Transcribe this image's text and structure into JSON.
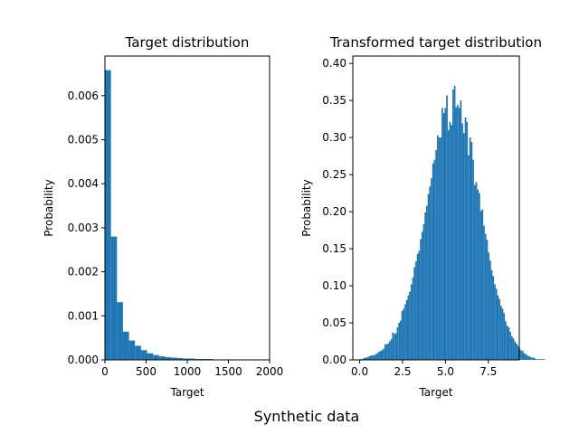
{
  "figure": {
    "suptitle": "Synthetic data"
  },
  "chart_data": [
    {
      "type": "bar",
      "title": "Target distribution",
      "xlabel": "Target",
      "ylabel": "Probability",
      "xlim": [
        0,
        2000
      ],
      "ylim": [
        0,
        0.0069
      ],
      "xticks": [
        "0",
        "500",
        "1000",
        "1500",
        "2000"
      ],
      "yticks": [
        "0.000",
        "0.001",
        "0.002",
        "0.003",
        "0.004",
        "0.005",
        "0.006"
      ],
      "bin_start": 0,
      "bin_width": 73,
      "values": [
        0.00658,
        0.0028,
        0.00131,
        0.00064,
        0.00044,
        0.00032,
        0.00022,
        0.00015,
        0.00011,
        8e-05,
        6e-05,
        5e-05,
        4e-05,
        3e-05,
        3e-05,
        2e-05,
        2e-05,
        2e-05,
        1e-05,
        1e-05,
        1e-05,
        1e-05,
        1e-05,
        8e-06,
        5e-06
      ],
      "bar_color": "#1f77b4",
      "grid": false
    },
    {
      "type": "bar",
      "title": "Transformed target distribution",
      "xlabel": "Target",
      "ylabel": "Probability",
      "xlim": [
        -0.4,
        9.3
      ],
      "ylim": [
        0,
        0.41
      ],
      "xticks": [
        "0.0",
        "2.5",
        "5.0",
        "7.5"
      ],
      "yticks": [
        "0.00",
        "0.05",
        "0.10",
        "0.15",
        "0.20",
        "0.25",
        "0.30",
        "0.35",
        "0.40"
      ],
      "bin_start": 0.0,
      "bin_width": 0.09,
      "values": [
        0.001,
        0.001,
        0.002,
        0.003,
        0.003,
        0.004,
        0.005,
        0.006,
        0.006,
        0.006,
        0.008,
        0.009,
        0.011,
        0.012,
        0.013,
        0.015,
        0.021,
        0.021,
        0.022,
        0.025,
        0.028,
        0.037,
        0.035,
        0.036,
        0.044,
        0.05,
        0.053,
        0.066,
        0.069,
        0.075,
        0.081,
        0.087,
        0.092,
        0.102,
        0.111,
        0.125,
        0.133,
        0.143,
        0.147,
        0.163,
        0.173,
        0.183,
        0.199,
        0.208,
        0.224,
        0.234,
        0.245,
        0.265,
        0.27,
        0.283,
        0.303,
        0.3,
        0.3,
        0.34,
        0.333,
        0.34,
        0.357,
        0.31,
        0.321,
        0.317,
        0.365,
        0.37,
        0.341,
        0.344,
        0.34,
        0.35,
        0.319,
        0.306,
        0.327,
        0.321,
        0.276,
        0.3,
        0.294,
        0.27,
        0.236,
        0.24,
        0.23,
        0.225,
        0.201,
        0.203,
        0.181,
        0.17,
        0.162,
        0.145,
        0.134,
        0.121,
        0.113,
        0.102,
        0.096,
        0.087,
        0.082,
        0.073,
        0.069,
        0.063,
        0.052,
        0.046,
        0.044,
        0.038,
        0.032,
        0.029,
        0.025,
        0.022,
        0.019,
        0.015,
        0.013,
        0.012,
        0.009,
        0.008,
        0.006,
        0.005,
        0.004,
        0.003,
        0.003,
        0.002,
        0.001,
        0.001,
        0.001,
        0.001,
        0.001,
        0.001
      ],
      "bar_color": "#1f77b4",
      "grid": false
    }
  ]
}
